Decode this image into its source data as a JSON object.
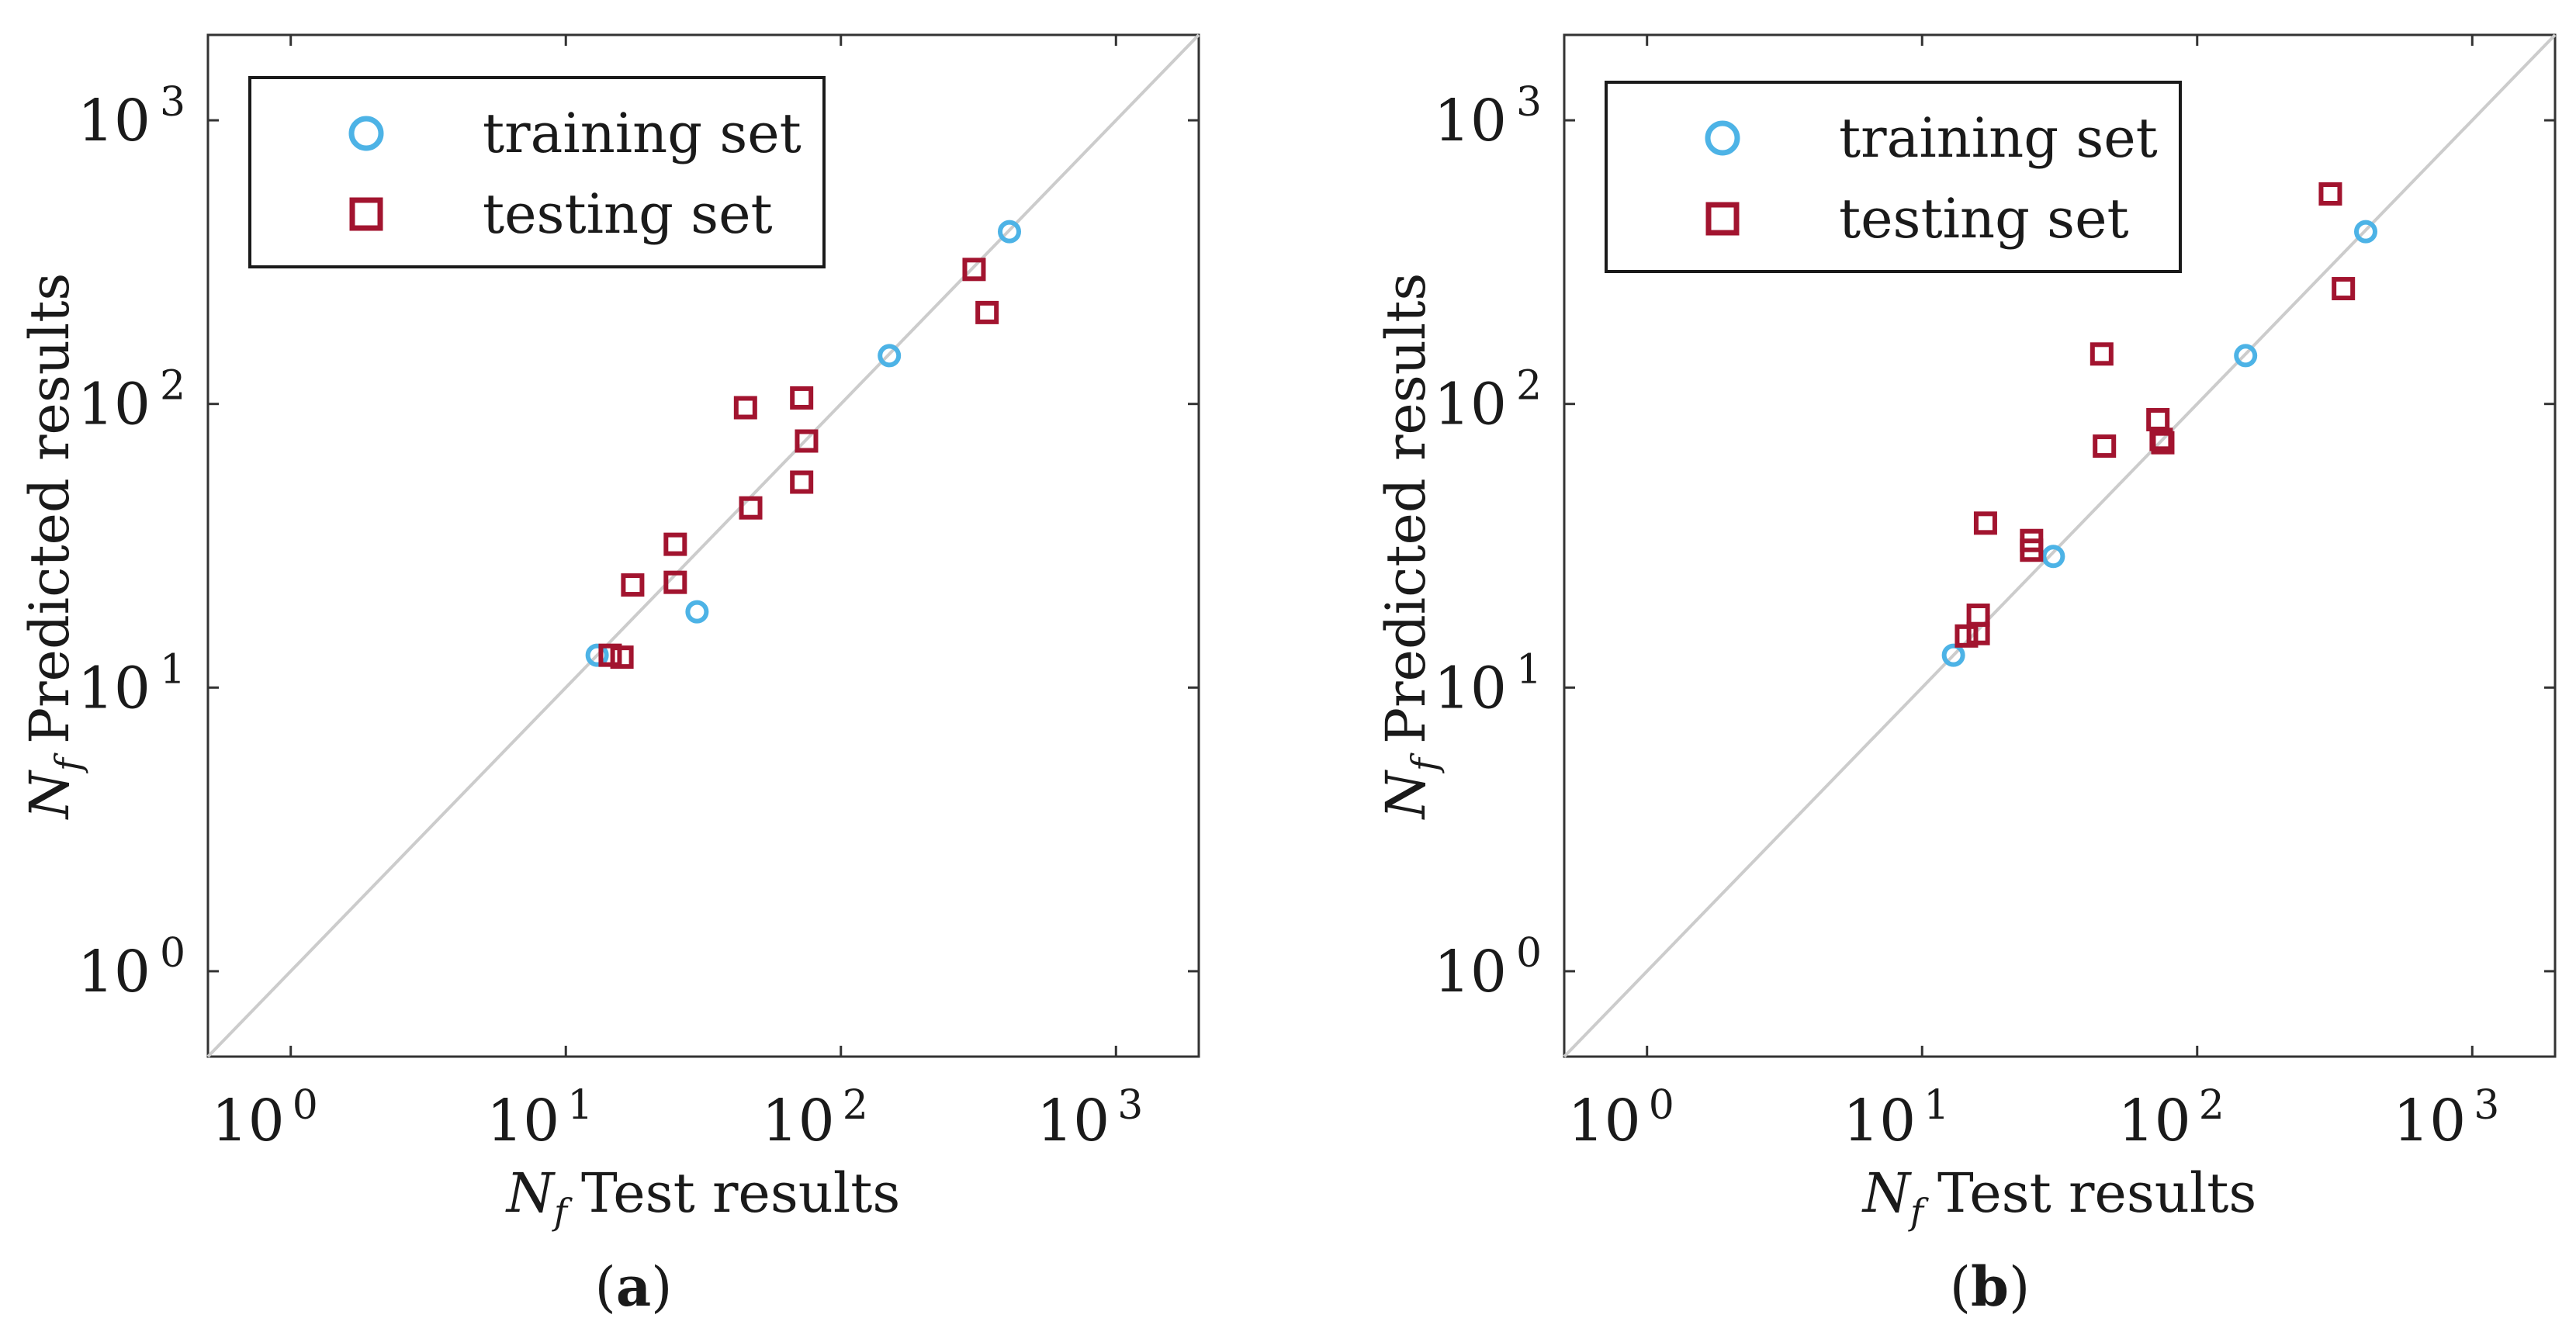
{
  "chart_data": [
    {
      "type": "scatter",
      "panel_label": "(a)",
      "panel_letter": "a",
      "scale": "log-log",
      "xlabel_symbol": "N",
      "xlabel_sub": "f",
      "xlabel_text": "Test results",
      "ylabel_symbol": "N",
      "ylabel_sub": "f",
      "ylabel_text": "Predicted results",
      "xlim": [
        0.5,
        2000
      ],
      "ylim": [
        0.5,
        2000
      ],
      "ticks": [
        {
          "base": "10",
          "exp": "0",
          "value": 1
        },
        {
          "base": "10",
          "exp": "1",
          "value": 10
        },
        {
          "base": "10",
          "exp": "2",
          "value": 100
        },
        {
          "base": "10",
          "exp": "3",
          "value": 1000
        }
      ],
      "reference_line": "y = x",
      "colors": {
        "training": "#4db3e6",
        "testing": "#a2142f",
        "reference": "#cccccc",
        "axes": "#333333"
      },
      "legend": [
        {
          "label": "training set",
          "marker": "circle"
        },
        {
          "label": "testing set",
          "marker": "square"
        }
      ],
      "series": [
        {
          "name": "training set",
          "marker": "circle",
          "points": [
            [
              13,
              13
            ],
            [
              30,
              18.5
            ],
            [
              150,
              148
            ],
            [
              410,
              405
            ]
          ]
        },
        {
          "name": "testing set",
          "marker": "square",
          "points": [
            [
              14.5,
              13
            ],
            [
              16,
              12.8
            ],
            [
              17.5,
              23
            ],
            [
              25,
              32
            ],
            [
              25,
              23.5
            ],
            [
              45,
              97
            ],
            [
              47,
              43
            ],
            [
              72,
              105
            ],
            [
              72,
              53
            ],
            [
              75,
              74
            ],
            [
              305,
              298
            ],
            [
              340,
              210
            ]
          ]
        }
      ]
    },
    {
      "type": "scatter",
      "panel_label": "(b)",
      "panel_letter": "b",
      "scale": "log-log",
      "xlabel_symbol": "N",
      "xlabel_sub": "f",
      "xlabel_text": "Test results",
      "ylabel_symbol": "N",
      "ylabel_sub": "f",
      "ylabel_text": "Predicted results",
      "xlim": [
        0.5,
        2000
      ],
      "ylim": [
        0.5,
        2000
      ],
      "ticks": [
        {
          "base": "10",
          "exp": "0",
          "value": 1
        },
        {
          "base": "10",
          "exp": "1",
          "value": 10
        },
        {
          "base": "10",
          "exp": "2",
          "value": 100
        },
        {
          "base": "10",
          "exp": "3",
          "value": 1000
        }
      ],
      "reference_line": "y = x",
      "colors": {
        "training": "#4db3e6",
        "testing": "#a2142f",
        "reference": "#cccccc",
        "axes": "#333333"
      },
      "legend": [
        {
          "label": "training set",
          "marker": "circle"
        },
        {
          "label": "testing set",
          "marker": "square"
        }
      ],
      "series": [
        {
          "name": "training set",
          "marker": "circle",
          "points": [
            [
              13,
              13
            ],
            [
              30,
              29
            ],
            [
              150,
              148
            ],
            [
              410,
              405
            ]
          ]
        },
        {
          "name": "testing set",
          "marker": "square",
          "points": [
            [
              14.5,
              15.2
            ],
            [
              16,
              15.5
            ],
            [
              16,
              18
            ],
            [
              17,
              38
            ],
            [
              25,
              33
            ],
            [
              25,
              30.5
            ],
            [
              45,
              150
            ],
            [
              46,
              71
            ],
            [
              72,
              88
            ],
            [
              74,
              75
            ],
            [
              75,
              73
            ],
            [
              305,
              550
            ],
            [
              340,
              255
            ]
          ]
        }
      ]
    }
  ]
}
